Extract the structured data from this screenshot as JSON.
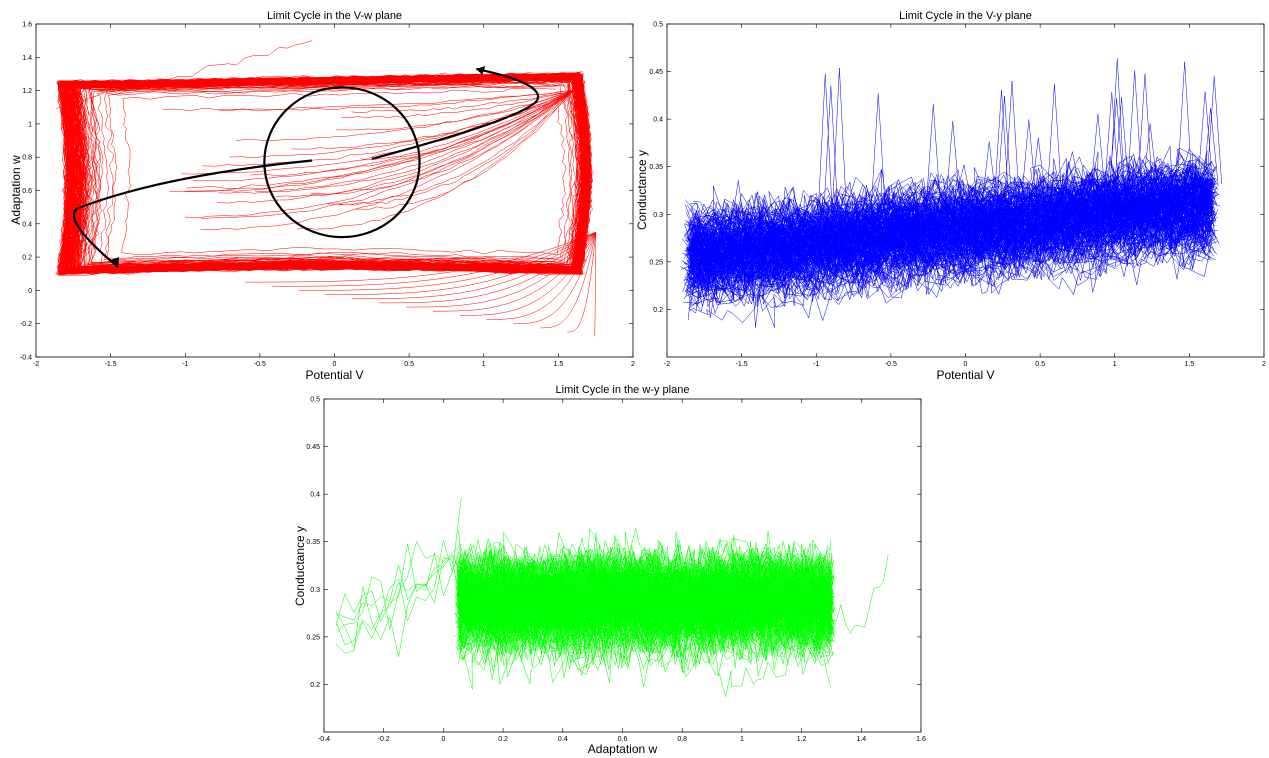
{
  "chart_data": [
    {
      "type": "line",
      "title": "Limit Cycle in the V-w plane",
      "xlabel": "Potential V",
      "ylabel": "Adaptation w",
      "xlim": [
        -2,
        2
      ],
      "ylim": [
        -0.4,
        1.6
      ],
      "xticks": [
        "-2",
        "-1.5",
        "-1",
        "-0.5",
        "0",
        "0.5",
        "1",
        "1.5",
        "2"
      ],
      "yticks": [
        "-0.4",
        "-0.2",
        "0",
        "0.2",
        "0.4",
        "0.6",
        "0.8",
        "1",
        "1.2",
        "1.4",
        "1.6"
      ],
      "grid": false,
      "color": "#ff0000",
      "description_series": {
        "limit_cycle_extent": {
          "v_min": -1.85,
          "v_max": 1.65,
          "w_min": 0.1,
          "w_max": 1.3
        },
        "transient_start": {
          "v": -0.15,
          "w": 1.5
        }
      },
      "annotation_circle": {
        "cx": 0.05,
        "cy": 0.77,
        "rx": 0.52,
        "ry": 0.45,
        "color": "#000000"
      },
      "annotation_arrows": [
        {
          "from": [
            0.25,
            0.79
          ],
          "to": [
            0.95,
            1.33
          ],
          "color": "#000000"
        },
        {
          "from": [
            -0.15,
            0.78
          ],
          "to": [
            -1.45,
            0.14
          ],
          "color": "#000000"
        }
      ]
    },
    {
      "type": "line",
      "title": "Limit Cycle in the V-y plane",
      "xlabel": "Potential V",
      "ylabel": "Conductance y",
      "xlim": [
        -2,
        2
      ],
      "ylim": [
        0.15,
        0.5
      ],
      "xticks": [
        "-2",
        "-1.5",
        "-1",
        "-0.5",
        "0",
        "0.5",
        "1",
        "1.5",
        "2"
      ],
      "yticks": [
        "0.2",
        "0.25",
        "0.3",
        "0.35",
        "0.4",
        "0.45",
        "0.5"
      ],
      "grid": false,
      "color": "#0000ff",
      "band": {
        "v_range": [
          -1.85,
          1.65
        ],
        "y_center_left": 0.255,
        "y_center_right": 0.31,
        "spread": 0.035
      }
    },
    {
      "type": "line",
      "title": "Limit Cycle in the w-y plane",
      "xlabel": "Adaptation w",
      "ylabel": "Conductance y",
      "xlim": [
        -0.4,
        1.6
      ],
      "ylim": [
        0.15,
        0.5
      ],
      "xticks": [
        "-0.4",
        "-0.2",
        "0",
        "0.2",
        "0.4",
        "0.6",
        "0.8",
        "1",
        "1.2",
        "1.4",
        "1.6"
      ],
      "yticks": [
        "0.2",
        "0.25",
        "0.3",
        "0.35",
        "0.4",
        "0.45",
        "0.5"
      ],
      "grid": false,
      "color": "#00ff00",
      "band": {
        "w_range": [
          0.05,
          1.3
        ],
        "y_center": 0.285,
        "spread": 0.035
      }
    }
  ]
}
